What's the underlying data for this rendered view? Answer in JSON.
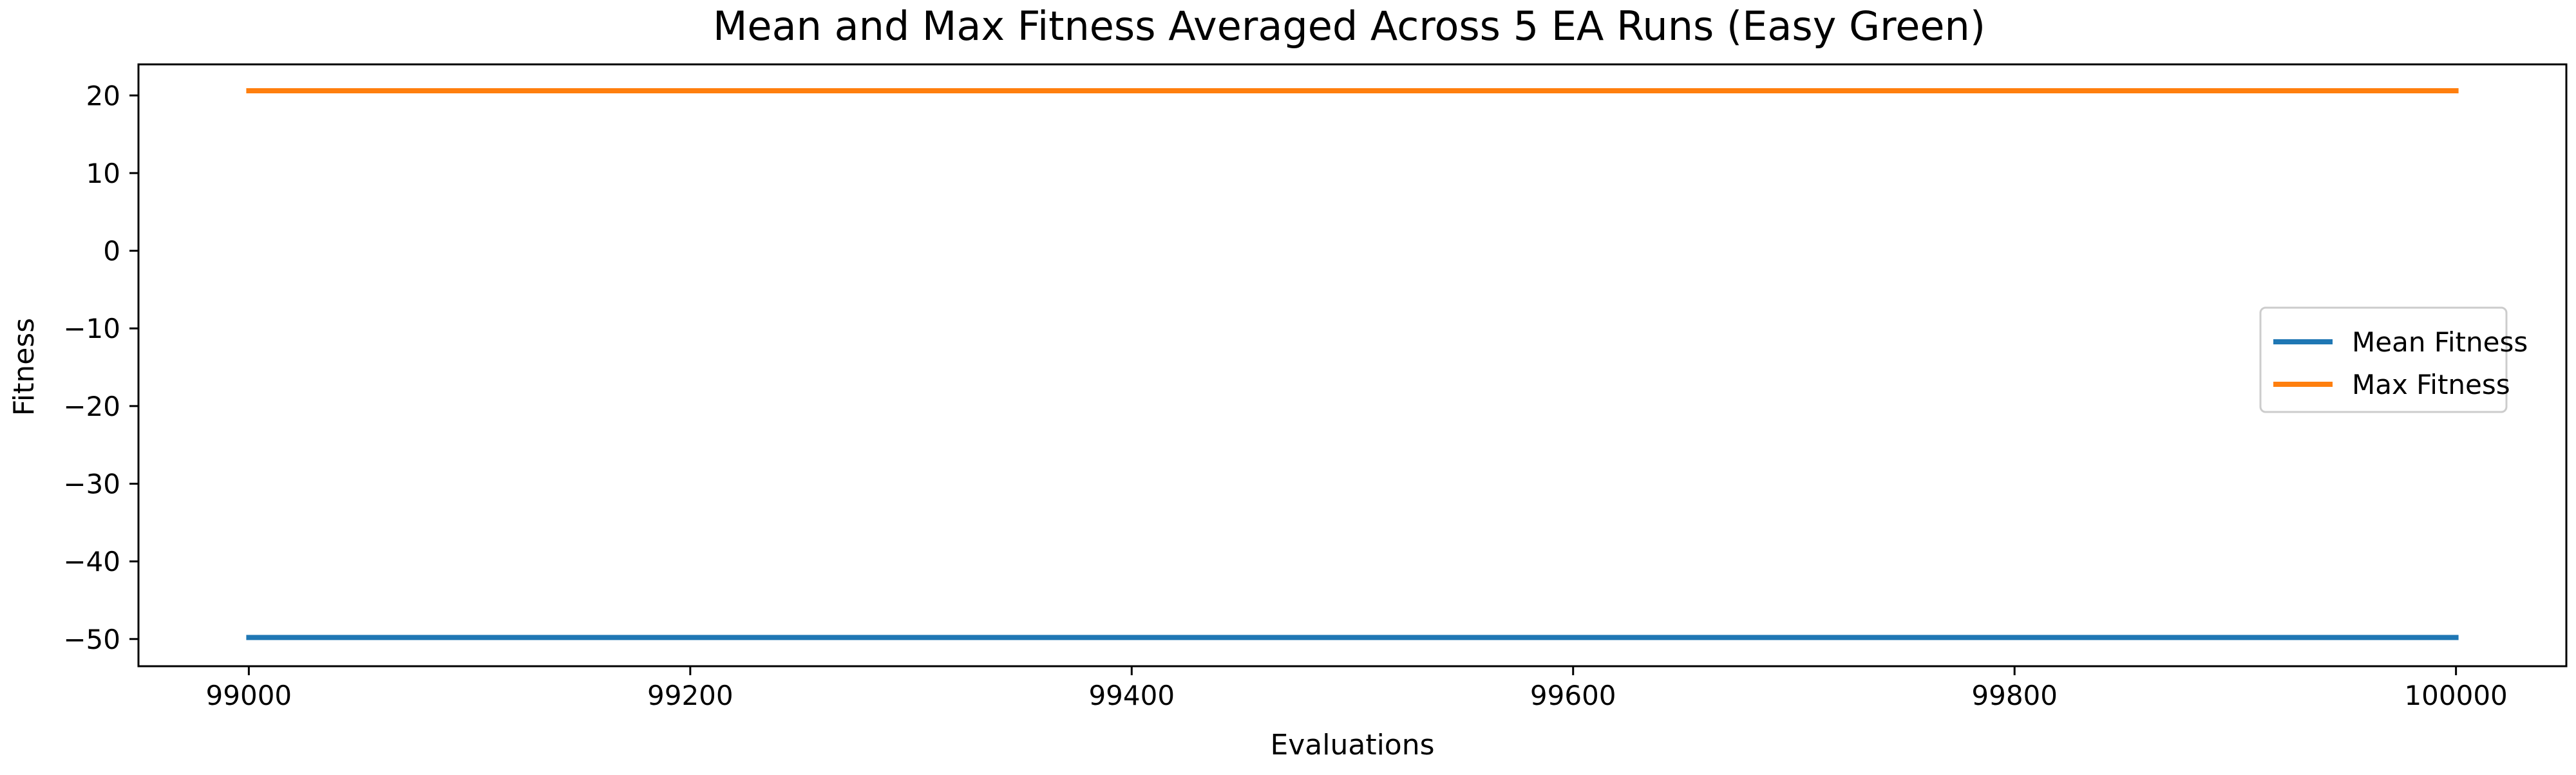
{
  "chart_data": {
    "type": "line",
    "title": "Mean and Max Fitness Averaged Across 5 EA Runs (Easy Green)",
    "xlabel": "Evaluations",
    "ylabel": "Fitness",
    "xlim": [
      98950,
      100050
    ],
    "ylim": [
      -53.5,
      24
    ],
    "xticks": [
      99000,
      99200,
      99400,
      99600,
      99800,
      100000
    ],
    "xtick_labels": [
      "99000",
      "99200",
      "99400",
      "99600",
      "99800",
      "100000"
    ],
    "yticks": [
      20,
      10,
      0,
      -10,
      -20,
      -30,
      -40,
      -50
    ],
    "ytick_labels": [
      "20",
      "10",
      "0",
      "−10",
      "−20",
      "−30",
      "−40",
      "−50"
    ],
    "grid": false,
    "legend_position": "center-right",
    "series": [
      {
        "name": "Mean Fitness",
        "color": "#1f77b4",
        "x": [
          99000,
          100000
        ],
        "y": [
          -49.8,
          -49.8
        ]
      },
      {
        "name": "Max Fitness",
        "color": "#ff7f0e",
        "x": [
          99000,
          100000
        ],
        "y": [
          20.6,
          20.6
        ]
      }
    ]
  }
}
